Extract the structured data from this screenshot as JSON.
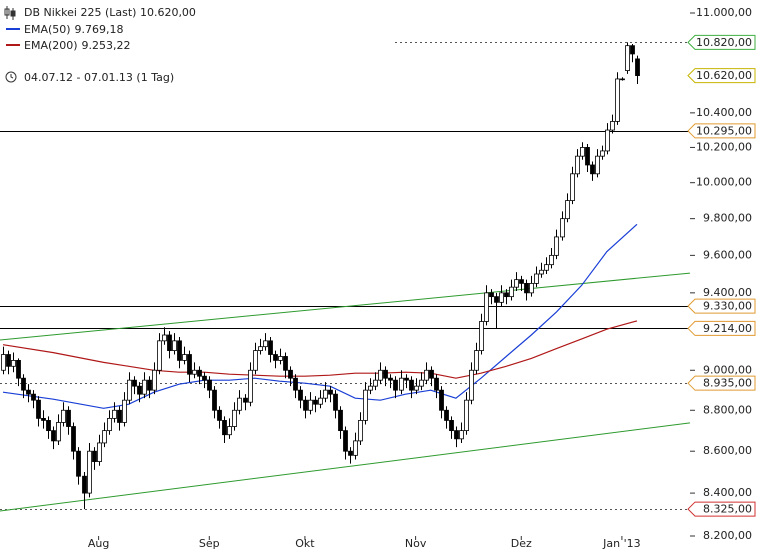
{
  "chart_data": {
    "type": "candlestick",
    "title": "DB Nikkei 225 (Last) 10.620,00",
    "period": "04.07.12 - 07.01.13 (1 Tag)",
    "log_scale": true,
    "ylim": [
      8200,
      11000
    ],
    "yticks": [
      {
        "value": 11000,
        "label": "11.000,00"
      },
      {
        "value": 10400,
        "label": "10.400,00"
      },
      {
        "value": 10200,
        "label": "10.200,00"
      },
      {
        "value": 10000,
        "label": "10.000,00"
      },
      {
        "value": 9800,
        "label": "9.800,00"
      },
      {
        "value": 9600,
        "label": "9.600,00"
      },
      {
        "value": 9400,
        "label": "9.400,00"
      },
      {
        "value": 9000,
        "label": "9.000,00"
      },
      {
        "value": 8800,
        "label": "8.800,00"
      },
      {
        "value": 8600,
        "label": "8.600,00"
      },
      {
        "value": 8400,
        "label": "8.400,00"
      },
      {
        "value": 8200,
        "label": "8.200,00"
      }
    ],
    "categories": [
      null,
      null,
      null,
      null,
      null,
      null,
      null,
      null,
      null,
      null,
      null,
      null,
      null,
      null,
      null,
      null,
      null,
      null,
      null,
      "Aug",
      null,
      null,
      null,
      null,
      null,
      null,
      null,
      null,
      null,
      null,
      null,
      null,
      null,
      null,
      null,
      null,
      null,
      null,
      null,
      null,
      null,
      "Sep",
      null,
      null,
      null,
      null,
      null,
      null,
      null,
      null,
      null,
      null,
      null,
      null,
      null,
      null,
      null,
      null,
      null,
      null,
      "Okt",
      null,
      null,
      null,
      null,
      null,
      null,
      null,
      null,
      null,
      null,
      null,
      null,
      null,
      null,
      null,
      null,
      null,
      null,
      null,
      null,
      null,
      "Nov",
      null,
      null,
      null,
      null,
      null,
      null,
      null,
      null,
      null,
      null,
      null,
      null,
      null,
      null,
      null,
      null,
      null,
      null,
      null,
      null,
      "Dez",
      null,
      null,
      null,
      null,
      null,
      null,
      null,
      null,
      null,
      null,
      null,
      null,
      null,
      null,
      null,
      null,
      null,
      null,
      null,
      "Jan '13",
      null,
      null,
      null
    ],
    "ohlc": [
      [
        9000,
        9120,
        8980,
        9080
      ],
      [
        9080,
        9100,
        8980,
        9020
      ],
      [
        9020,
        9090,
        8990,
        9050
      ],
      [
        9050,
        9060,
        8920,
        8960
      ],
      [
        8960,
        8980,
        8860,
        8900
      ],
      [
        8900,
        8930,
        8840,
        8880
      ],
      [
        8880,
        8900,
        8810,
        8850
      ],
      [
        8850,
        8870,
        8720,
        8760
      ],
      [
        8760,
        8800,
        8710,
        8750
      ],
      [
        8750,
        8770,
        8660,
        8700
      ],
      [
        8700,
        8720,
        8610,
        8650
      ],
      [
        8650,
        8780,
        8630,
        8740
      ],
      [
        8740,
        8840,
        8720,
        8800
      ],
      [
        8800,
        8820,
        8680,
        8720
      ],
      [
        8720,
        8740,
        8560,
        8600
      ],
      [
        8600,
        8620,
        8440,
        8480
      ],
      [
        8480,
        8500,
        8325,
        8400
      ],
      [
        8400,
        8640,
        8380,
        8600
      ],
      [
        8600,
        8620,
        8510,
        8550
      ],
      [
        8550,
        8680,
        8530,
        8640
      ],
      [
        8640,
        8740,
        8620,
        8700
      ],
      [
        8700,
        8800,
        8680,
        8760
      ],
      [
        8760,
        8840,
        8740,
        8800
      ],
      [
        8800,
        8820,
        8700,
        8740
      ],
      [
        8740,
        8890,
        8720,
        8850
      ],
      [
        8850,
        8990,
        8830,
        8950
      ],
      [
        8950,
        8970,
        8880,
        8920
      ],
      [
        8920,
        8940,
        8840,
        8880
      ],
      [
        8880,
        8990,
        8860,
        8950
      ],
      [
        8950,
        8970,
        8860,
        8900
      ],
      [
        8900,
        9040,
        8880,
        9000
      ],
      [
        9000,
        9190,
        8980,
        9150
      ],
      [
        9150,
        9220,
        9130,
        9180
      ],
      [
        9180,
        9200,
        9060,
        9100
      ],
      [
        9100,
        9190,
        9080,
        9150
      ],
      [
        9150,
        9170,
        9010,
        9050
      ],
      [
        9050,
        9120,
        9030,
        9080
      ],
      [
        9080,
        9100,
        8940,
        8980
      ],
      [
        8980,
        9040,
        8960,
        9000
      ],
      [
        9000,
        9020,
        8930,
        8970
      ],
      [
        8970,
        8990,
        8910,
        8950
      ],
      [
        8950,
        8970,
        8860,
        8900
      ],
      [
        8900,
        8920,
        8760,
        8800
      ],
      [
        8800,
        8820,
        8710,
        8750
      ],
      [
        8750,
        8770,
        8640,
        8680
      ],
      [
        8680,
        8760,
        8660,
        8720
      ],
      [
        8720,
        8840,
        8700,
        8800
      ],
      [
        8800,
        8900,
        8780,
        8860
      ],
      [
        8860,
        8880,
        8800,
        8840
      ],
      [
        8840,
        9040,
        8820,
        9000
      ],
      [
        9000,
        9140,
        8980,
        9100
      ],
      [
        9100,
        9160,
        9080,
        9120
      ],
      [
        9120,
        9190,
        9100,
        9150
      ],
      [
        9150,
        9170,
        9040,
        9080
      ],
      [
        9080,
        9100,
        9010,
        9050
      ],
      [
        9050,
        9110,
        9030,
        9070
      ],
      [
        9070,
        9090,
        8960,
        9000
      ],
      [
        9000,
        9020,
        8920,
        8960
      ],
      [
        8960,
        8980,
        8860,
        8900
      ],
      [
        8900,
        8920,
        8810,
        8850
      ],
      [
        8850,
        8870,
        8760,
        8800
      ],
      [
        8800,
        8890,
        8780,
        8850
      ],
      [
        8850,
        8870,
        8790,
        8830
      ],
      [
        8830,
        8900,
        8810,
        8860
      ],
      [
        8860,
        8940,
        8840,
        8900
      ],
      [
        8900,
        8920,
        8840,
        8880
      ],
      [
        8880,
        8900,
        8760,
        8800
      ],
      [
        8800,
        8820,
        8660,
        8700
      ],
      [
        8700,
        8720,
        8560,
        8600
      ],
      [
        8600,
        8620,
        8540,
        8580
      ],
      [
        8580,
        8690,
        8560,
        8650
      ],
      [
        8650,
        8790,
        8630,
        8750
      ],
      [
        8750,
        8940,
        8730,
        8900
      ],
      [
        8900,
        8960,
        8880,
        8920
      ],
      [
        8920,
        8990,
        8900,
        8950
      ],
      [
        8950,
        9040,
        8930,
        9000
      ],
      [
        9000,
        9020,
        8920,
        8960
      ],
      [
        8960,
        8980,
        8910,
        8950
      ],
      [
        8950,
        8970,
        8860,
        8900
      ],
      [
        8900,
        9000,
        8880,
        8960
      ],
      [
        8960,
        8980,
        8910,
        8950
      ],
      [
        8950,
        8970,
        8860,
        8900
      ],
      [
        8900,
        8960,
        8880,
        8920
      ],
      [
        8920,
        8990,
        8900,
        8950
      ],
      [
        8950,
        9040,
        8930,
        9000
      ],
      [
        9000,
        9020,
        8920,
        8960
      ],
      [
        8960,
        8980,
        8860,
        8900
      ],
      [
        8900,
        8920,
        8760,
        8800
      ],
      [
        8800,
        8820,
        8710,
        8750
      ],
      [
        8750,
        8770,
        8660,
        8700
      ],
      [
        8700,
        8720,
        8620,
        8660
      ],
      [
        8660,
        8740,
        8640,
        8700
      ],
      [
        8700,
        8890,
        8680,
        8850
      ],
      [
        8850,
        9040,
        8830,
        9000
      ],
      [
        9000,
        9140,
        8980,
        9100
      ],
      [
        9100,
        9290,
        9080,
        9250
      ],
      [
        9250,
        9440,
        9230,
        9400
      ],
      [
        9400,
        9420,
        9340,
        9380
      ],
      [
        9380,
        9400,
        9214,
        9350
      ],
      [
        9350,
        9440,
        9330,
        9400
      ],
      [
        9400,
        9420,
        9340,
        9380
      ],
      [
        9380,
        9470,
        9360,
        9430
      ],
      [
        9430,
        9510,
        9410,
        9470
      ],
      [
        9470,
        9490,
        9410,
        9450
      ],
      [
        9450,
        9470,
        9360,
        9400
      ],
      [
        9400,
        9490,
        9380,
        9450
      ],
      [
        9450,
        9540,
        9430,
        9500
      ],
      [
        9500,
        9560,
        9480,
        9520
      ],
      [
        9520,
        9590,
        9500,
        9550
      ],
      [
        9550,
        9640,
        9530,
        9600
      ],
      [
        9600,
        9740,
        9580,
        9700
      ],
      [
        9700,
        9840,
        9680,
        9800
      ],
      [
        9800,
        9940,
        9780,
        9900
      ],
      [
        9900,
        10090,
        9880,
        10050
      ],
      [
        10050,
        10190,
        10030,
        10150
      ],
      [
        10150,
        10230,
        10130,
        10200
      ],
      [
        10200,
        10220,
        10060,
        10100
      ],
      [
        10100,
        10120,
        10010,
        10050
      ],
      [
        10050,
        10190,
        10030,
        10150
      ],
      [
        10150,
        10210,
        10130,
        10180
      ],
      [
        10180,
        10340,
        10160,
        10300
      ],
      [
        10300,
        10390,
        10280,
        10350
      ],
      [
        10350,
        10640,
        10330,
        10600
      ],
      [
        10600,
        10610,
        10590,
        10600
      ],
      [
        10650,
        10820,
        10630,
        10800
      ],
      [
        10800,
        10810,
        10700,
        10750
      ],
      [
        10720,
        10740,
        10570,
        10620
      ]
    ],
    "series": [
      {
        "name": "EMA(50)",
        "last_label": "9.769,18",
        "color": "#1a3fd6",
        "x": [
          0,
          10,
          20,
          25,
          30,
          35,
          40,
          45,
          50,
          55,
          60,
          65,
          70,
          75,
          80,
          85,
          90,
          95,
          100,
          105,
          110,
          115,
          120,
          126
        ],
        "values": [
          8890,
          8855,
          8810,
          8830,
          8890,
          8930,
          8950,
          8950,
          8960,
          8945,
          8935,
          8920,
          8860,
          8850,
          8880,
          8900,
          8860,
          8960,
          9070,
          9180,
          9300,
          9440,
          9620,
          9769.18
        ]
      },
      {
        "name": "EMA(200)",
        "last_label": "9.253,22",
        "color": "#b01818",
        "x": [
          0,
          10,
          20,
          25,
          30,
          35,
          40,
          45,
          50,
          55,
          60,
          65,
          70,
          75,
          80,
          85,
          90,
          95,
          100,
          105,
          110,
          115,
          120,
          126
        ],
        "values": [
          9130,
          9090,
          9040,
          9020,
          9000,
          8990,
          8990,
          8980,
          8975,
          8970,
          8970,
          8975,
          8985,
          8985,
          8990,
          8985,
          8960,
          8985,
          9020,
          9060,
          9110,
          9160,
          9210,
          9253.22
        ]
      }
    ],
    "trendlines": [
      {
        "color": "#2e9a2e",
        "start": 9154,
        "end": 9505
      },
      {
        "color": "#2e9a2e",
        "start": 8316,
        "end": 8738
      }
    ],
    "levels": [
      {
        "value": 10820,
        "label": "10.820,00",
        "line": "dotted",
        "color": "#3fae3f"
      },
      {
        "value": 10620,
        "label": "10.620,00",
        "line": "none",
        "color": "#c8b400"
      },
      {
        "value": 10295,
        "label": "10.295,00",
        "line": "solid",
        "color": "#e09a30"
      },
      {
        "value": 9330,
        "label": "9.330,00",
        "line": "solid",
        "color": "#e09a30"
      },
      {
        "value": 9214,
        "label": "9.214,00",
        "line": "solid",
        "color": "#e09a30"
      },
      {
        "value": 8935,
        "label": "8.935,00",
        "line": "dotted",
        "color": "#e09a30"
      },
      {
        "value": 8325,
        "label": "8.325,00",
        "line": "dotted",
        "color": "#d03030"
      }
    ]
  }
}
